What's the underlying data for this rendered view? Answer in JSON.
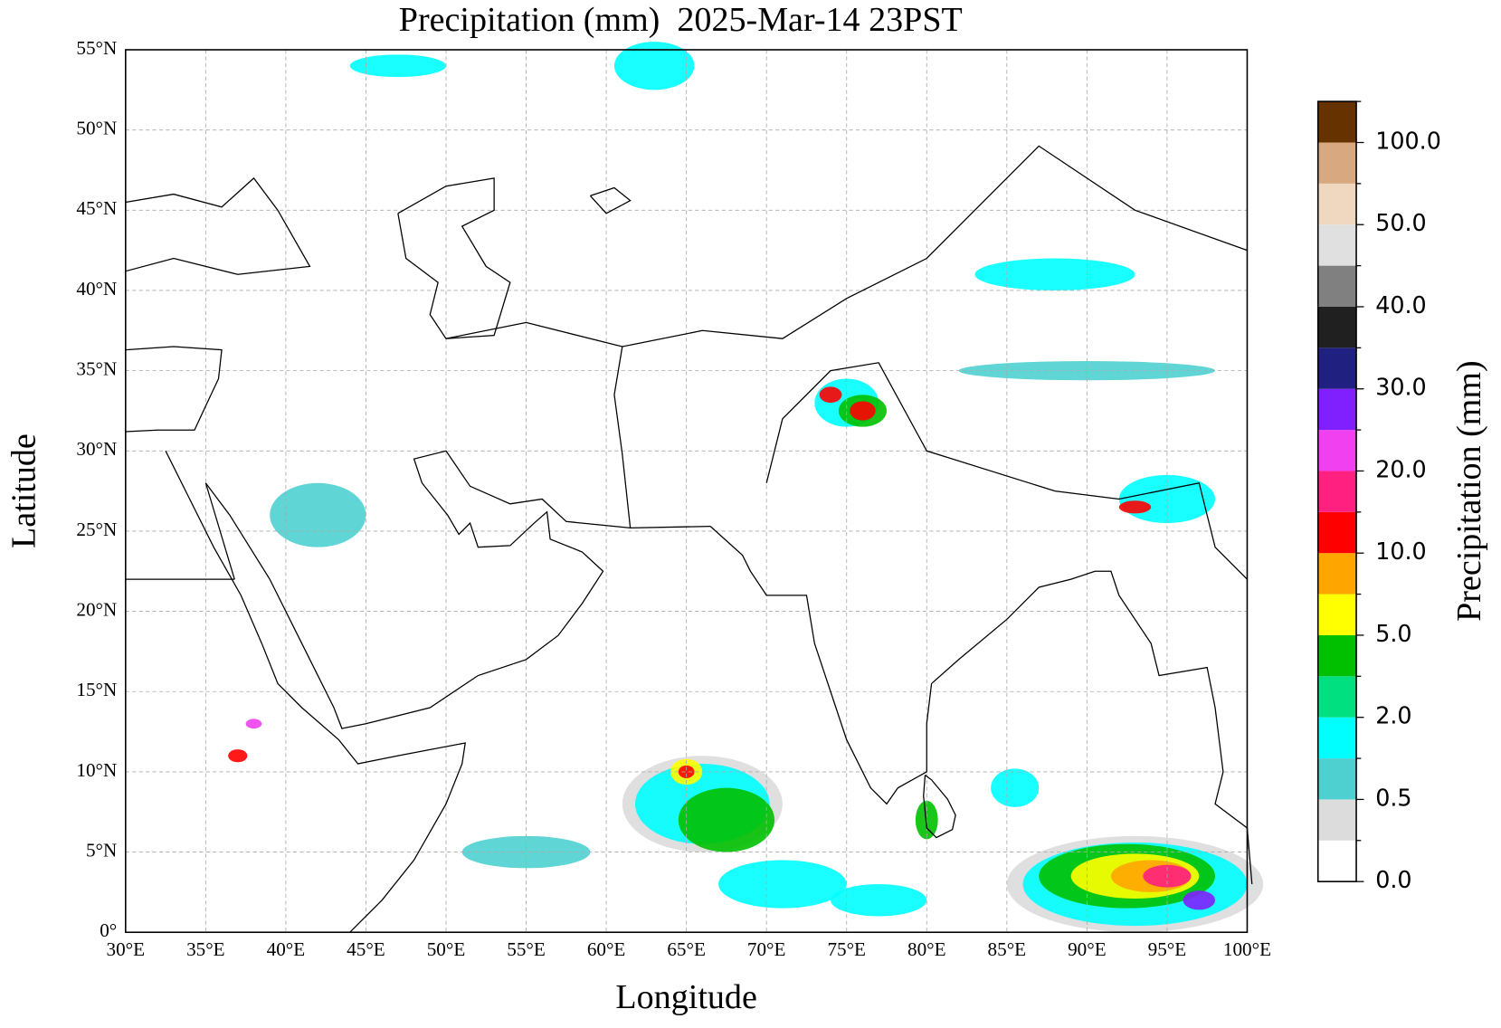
{
  "title": "Precipitation (mm)  2025-Mar-14 23PST",
  "x_axis": {
    "label": "Longitude",
    "ticks": [
      "30°E",
      "35°E",
      "40°E",
      "45°E",
      "50°E",
      "55°E",
      "60°E",
      "65°E",
      "70°E",
      "75°E",
      "80°E",
      "85°E",
      "90°E",
      "95°E",
      "100°E"
    ]
  },
  "y_axis": {
    "label": "Latitude",
    "ticks": [
      "0°",
      "5°N",
      "10°N",
      "15°N",
      "20°N",
      "25°N",
      "30°N",
      "35°N",
      "40°N",
      "45°N",
      "50°N",
      "55°N"
    ]
  },
  "colorbar": {
    "label": "Precipitation (mm)",
    "colors": [
      "#ffffff",
      "#dcdcdc",
      "#4fd0d0",
      "#00ffff",
      "#00e080",
      "#00c000",
      "#ffff00",
      "#ffa500",
      "#ff0000",
      "#ff2080",
      "#f040f0",
      "#8020ff",
      "#202080",
      "#202020",
      "#808080",
      "#e0e0e0",
      "#f0d8c0",
      "#d8a880",
      "#663300"
    ],
    "ticks": [
      "0.0",
      "0.5",
      "2.0",
      "5.0",
      "10.0",
      "20.0",
      "30.0",
      "40.0",
      "50.0",
      "100.0"
    ]
  }
}
